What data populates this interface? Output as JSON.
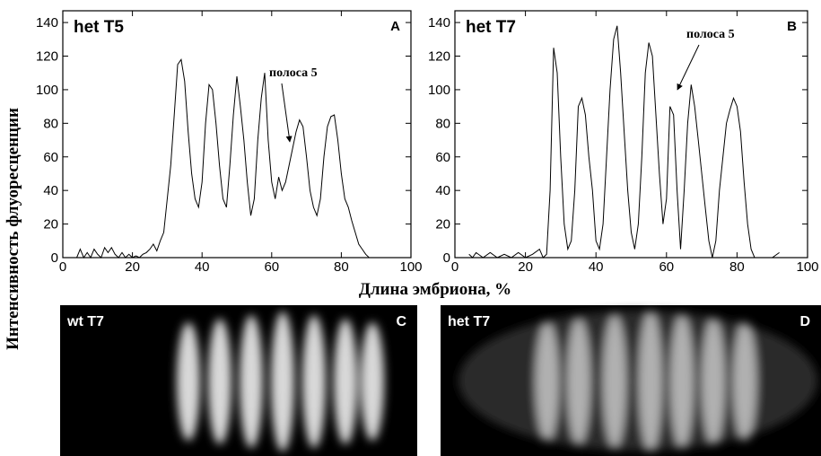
{
  "ylabel": "Интенсивность флуоресценции",
  "xlabel": "Длина эмбриона, %",
  "chart_data": [
    {
      "type": "line",
      "title": "het T5",
      "panel": "A",
      "annotation": "полоса 5",
      "color": "#000000",
      "xlim": [
        0,
        100
      ],
      "ylim": [
        0,
        147
      ],
      "xticks": [
        0,
        20,
        40,
        60,
        80,
        100
      ],
      "yticks": [
        0,
        20,
        40,
        60,
        80,
        100,
        120,
        140
      ],
      "x": [
        4,
        5,
        6,
        7,
        8,
        9,
        10,
        11,
        12,
        13,
        14,
        15,
        16,
        17,
        18,
        19,
        20,
        21,
        22,
        23,
        24,
        25,
        26,
        27,
        28,
        29,
        30,
        31,
        32,
        33,
        34,
        35,
        36,
        37,
        38,
        39,
        40,
        41,
        42,
        43,
        44,
        45,
        46,
        47,
        48,
        49,
        50,
        51,
        52,
        53,
        54,
        55,
        56,
        57,
        58,
        59,
        60,
        61,
        62,
        63,
        64,
        65,
        66,
        67,
        68,
        69,
        70,
        71,
        72,
        73,
        74,
        75,
        76,
        77,
        78,
        79,
        80,
        81,
        82,
        83,
        84,
        85,
        86,
        87,
        88
      ],
      "values": [
        0,
        5,
        0,
        3,
        0,
        5,
        2,
        0,
        6,
        3,
        6,
        2,
        0,
        3,
        0,
        2,
        0,
        1,
        0,
        2,
        3,
        5,
        8,
        4,
        10,
        15,
        35,
        55,
        85,
        115,
        118,
        105,
        75,
        50,
        35,
        30,
        45,
        80,
        103,
        100,
        80,
        55,
        35,
        30,
        55,
        85,
        108,
        90,
        70,
        45,
        25,
        35,
        70,
        95,
        110,
        70,
        45,
        35,
        48,
        40,
        45,
        55,
        65,
        75,
        82,
        78,
        60,
        40,
        30,
        25,
        35,
        60,
        78,
        84,
        85,
        70,
        50,
        35,
        30,
        22,
        15,
        8,
        5,
        2,
        0
      ]
    },
    {
      "type": "line",
      "title": "het T7",
      "panel": "B",
      "annotation": "полоса 5",
      "color": "#000000",
      "xlim": [
        0,
        100
      ],
      "ylim": [
        0,
        147
      ],
      "xticks": [
        0,
        20,
        40,
        60,
        80,
        100
      ],
      "yticks": [
        0,
        20,
        40,
        60,
        80,
        100,
        120,
        140
      ],
      "x": [
        4,
        5,
        6,
        8,
        10,
        12,
        14,
        16,
        18,
        20,
        22,
        24,
        25,
        26,
        27,
        28,
        29,
        30,
        31,
        32,
        33,
        34,
        35,
        36,
        37,
        38,
        39,
        40,
        41,
        42,
        43,
        44,
        45,
        46,
        47,
        48,
        49,
        50,
        51,
        52,
        53,
        54,
        55,
        56,
        57,
        58,
        59,
        60,
        61,
        62,
        63,
        64,
        65,
        66,
        67,
        68,
        69,
        70,
        71,
        72,
        73,
        74,
        75,
        76,
        77,
        78,
        79,
        80,
        81,
        82,
        83,
        84,
        85,
        87,
        90,
        92
      ],
      "values": [
        2,
        0,
        3,
        0,
        3,
        0,
        2,
        0,
        3,
        0,
        2,
        5,
        0,
        2,
        40,
        125,
        110,
        60,
        20,
        5,
        10,
        40,
        90,
        95,
        85,
        60,
        40,
        10,
        5,
        20,
        60,
        100,
        130,
        138,
        110,
        75,
        40,
        15,
        5,
        20,
        60,
        110,
        128,
        120,
        85,
        50,
        20,
        35,
        90,
        85,
        40,
        5,
        40,
        80,
        103,
        90,
        70,
        50,
        30,
        10,
        0,
        10,
        40,
        60,
        80,
        88,
        95,
        90,
        75,
        45,
        20,
        5,
        0,
        0,
        0,
        3
      ]
    }
  ],
  "images": [
    {
      "label": "wt T7",
      "panel": "C"
    },
    {
      "label": "het T7",
      "panel": "D"
    }
  ]
}
